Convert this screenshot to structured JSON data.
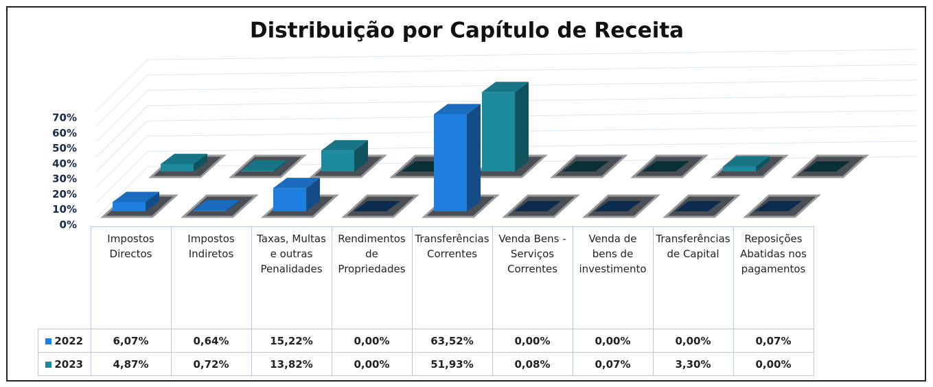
{
  "chart_data": {
    "type": "bar3d",
    "title": "Distribuição por Capítulo de Receita",
    "categories": [
      "Impostos Directos",
      "Impostos Indiretos",
      "Taxas, Multas e outras Penalidades",
      "Rendimentos de Propriedades",
      "Transferências Correntes",
      "Venda Bens - Serviços Correntes",
      "Venda de bens de investimento",
      "Transferências de Capital",
      "Reposições Abatidas nos pagamentos"
    ],
    "series": [
      {
        "name": "2022",
        "color": "#1f7fe0",
        "values": [
          6.07,
          0.64,
          15.22,
          0.0,
          63.52,
          0.0,
          0.0,
          0.0,
          0.07
        ],
        "value_labels": [
          "6,07%",
          "0,64%",
          "15,22%",
          "0,00%",
          "63,52%",
          "0,00%",
          "0,00%",
          "0,00%",
          "0,07%"
        ]
      },
      {
        "name": "2023",
        "color": "#1b8a9c",
        "values": [
          4.87,
          0.72,
          13.82,
          0.0,
          51.93,
          0.08,
          0.07,
          3.3,
          0.0
        ],
        "value_labels": [
          "4,87%",
          "0,72%",
          "13,82%",
          "0,00%",
          "51,93%",
          "0,08%",
          "0,07%",
          "3,30%",
          "0,00%"
        ]
      }
    ],
    "ylim": [
      0,
      70
    ],
    "yticks": [
      {
        "value": 0,
        "label": "0%"
      },
      {
        "value": 10,
        "label": "10%"
      },
      {
        "value": 20,
        "label": "20%"
      },
      {
        "value": 30,
        "label": "30%"
      },
      {
        "value": 40,
        "label": "40%"
      },
      {
        "value": 50,
        "label": "50%"
      },
      {
        "value": 60,
        "label": "60%"
      },
      {
        "value": 70,
        "label": "70%"
      }
    ],
    "grid": true
  }
}
